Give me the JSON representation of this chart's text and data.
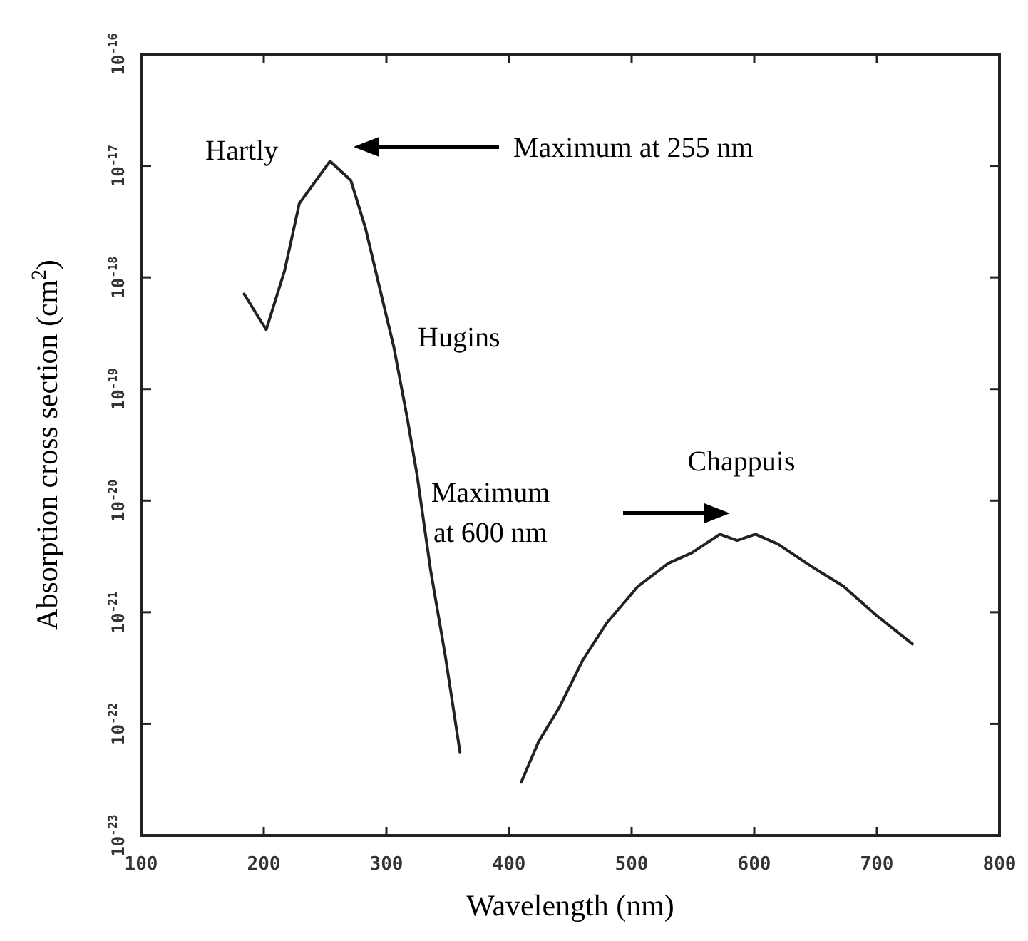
{
  "chart_data": {
    "type": "line",
    "xlabel": "Wavelength (nm)",
    "ylabel": "Absorption cross section  (cm$^{2}$)",
    "log": "y",
    "grid": false,
    "marker": "none",
    "line_style": "solid",
    "xlim": [
      100,
      800
    ],
    "xticks": [
      100,
      200,
      300,
      400,
      500,
      600,
      700,
      800
    ],
    "ylim": [
      1e-23,
      1e-16
    ],
    "yticks": [
      {
        "value": 1e-16,
        "label": "10$^{-16}$"
      },
      {
        "value": 1e-17,
        "label": "10$^{-17}$"
      },
      {
        "value": 1e-18,
        "label": "10$^{-18}$"
      },
      {
        "value": 1e-19,
        "label": "10$^{-19}$"
      },
      {
        "value": 1e-20,
        "label": "10$^{-20}$"
      },
      {
        "value": 1e-21,
        "label": "10$^{-21}$"
      },
      {
        "value": 1e-22,
        "label": "10$^{-22}$"
      },
      {
        "value": 1e-23,
        "label": "10$^{-23}$"
      }
    ],
    "series": [
      {
        "color": "#222222",
        "x": [
          184,
          202,
          217,
          229,
          254,
          271,
          283,
          294,
          306,
          317,
          325,
          336,
          348,
          360,
          385,
          410,
          424,
          441,
          460,
          480,
          505,
          530,
          549,
          572,
          586,
          601,
          619,
          646,
          673,
          700,
          729
        ],
        "values": [
          7.1e-19,
          3.4e-19,
          1.15e-18,
          4.6e-18,
          1.1e-17,
          7.4e-18,
          2.75e-18,
          8.5e-19,
          2.4e-19,
          5.5e-20,
          1.7e-20,
          2.4e-21,
          4.1e-22,
          5.6e-23,
          null,
          3e-23,
          6.9e-23,
          1.4e-22,
          3.7e-22,
          8.1e-22,
          1.7e-21,
          2.75e-21,
          3.4e-21,
          5e-21,
          4.4e-21,
          5e-21,
          4.1e-21,
          2.6e-21,
          1.7e-21,
          9.3e-22,
          5.2e-22
        ]
      }
    ],
    "annotations": [
      "Hartly",
      "Maximum at 255 nm",
      "Hugins",
      "Chappuis",
      "Maximum at 600 nm"
    ]
  }
}
